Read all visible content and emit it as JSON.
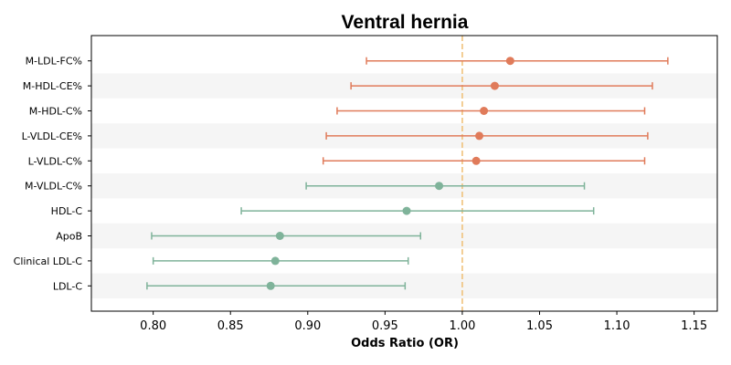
{
  "chart_data": {
    "type": "forest",
    "title": "Ventral hernia",
    "xlabel": "Odds Ratio (OR)",
    "xlim": [
      0.76,
      1.165
    ],
    "xticks": [
      0.8,
      0.85,
      0.9,
      0.95,
      1.0,
      1.05,
      1.1,
      1.15
    ],
    "xtick_labels": [
      "0.80",
      "0.85",
      "0.90",
      "0.95",
      "1.00",
      "1.05",
      "1.10",
      "1.15"
    ],
    "reference_line": 1.0,
    "grid": false,
    "colors": {
      "above_one": "#e07b5a",
      "below_one": "#7fb39a",
      "reference": "#f0c27b",
      "stripe": "#f5f5f5"
    },
    "rows": [
      {
        "label": "M-LDL-FC%",
        "or": 1.031,
        "lower": 0.938,
        "upper": 1.133
      },
      {
        "label": "M-HDL-CE%",
        "or": 1.021,
        "lower": 0.928,
        "upper": 1.123
      },
      {
        "label": "M-HDL-C%",
        "or": 1.014,
        "lower": 0.919,
        "upper": 1.118
      },
      {
        "label": "L-VLDL-CE%",
        "or": 1.011,
        "lower": 0.912,
        "upper": 1.12
      },
      {
        "label": "L-VLDL-C%",
        "or": 1.009,
        "lower": 0.91,
        "upper": 1.118
      },
      {
        "label": "M-VLDL-C%",
        "or": 0.985,
        "lower": 0.899,
        "upper": 1.079
      },
      {
        "label": "HDL-C",
        "or": 0.964,
        "lower": 0.857,
        "upper": 1.085
      },
      {
        "label": "ApoB",
        "or": 0.882,
        "lower": 0.799,
        "upper": 0.973
      },
      {
        "label": "Clinical LDL-C",
        "or": 0.879,
        "lower": 0.8,
        "upper": 0.965
      },
      {
        "label": "LDL-C",
        "or": 0.876,
        "lower": 0.796,
        "upper": 0.963
      }
    ]
  }
}
